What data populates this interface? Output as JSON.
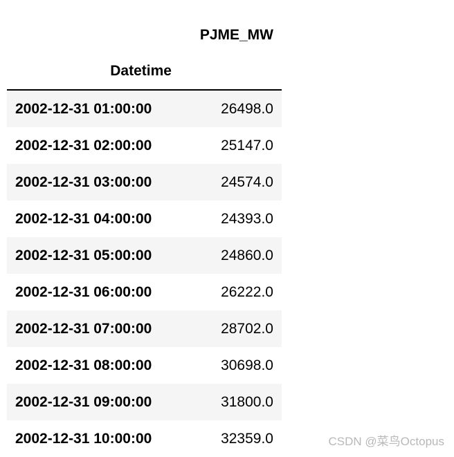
{
  "table": {
    "column_header": "PJME_MW",
    "index_name": "Datetime",
    "rows": [
      {
        "datetime": "2002-12-31 01:00:00",
        "value": "26498.0"
      },
      {
        "datetime": "2002-12-31 02:00:00",
        "value": "25147.0"
      },
      {
        "datetime": "2002-12-31 03:00:00",
        "value": "24574.0"
      },
      {
        "datetime": "2002-12-31 04:00:00",
        "value": "24393.0"
      },
      {
        "datetime": "2002-12-31 05:00:00",
        "value": "24860.0"
      },
      {
        "datetime": "2002-12-31 06:00:00",
        "value": "26222.0"
      },
      {
        "datetime": "2002-12-31 07:00:00",
        "value": "28702.0"
      },
      {
        "datetime": "2002-12-31 08:00:00",
        "value": "30698.0"
      },
      {
        "datetime": "2002-12-31 09:00:00",
        "value": "31800.0"
      },
      {
        "datetime": "2002-12-31 10:00:00",
        "value": "32359.0"
      }
    ]
  },
  "watermark": "CSDN @菜鸟Octopus",
  "colors": {
    "stripe": "#f5f5f5",
    "watermark": "#b8b8b8"
  }
}
